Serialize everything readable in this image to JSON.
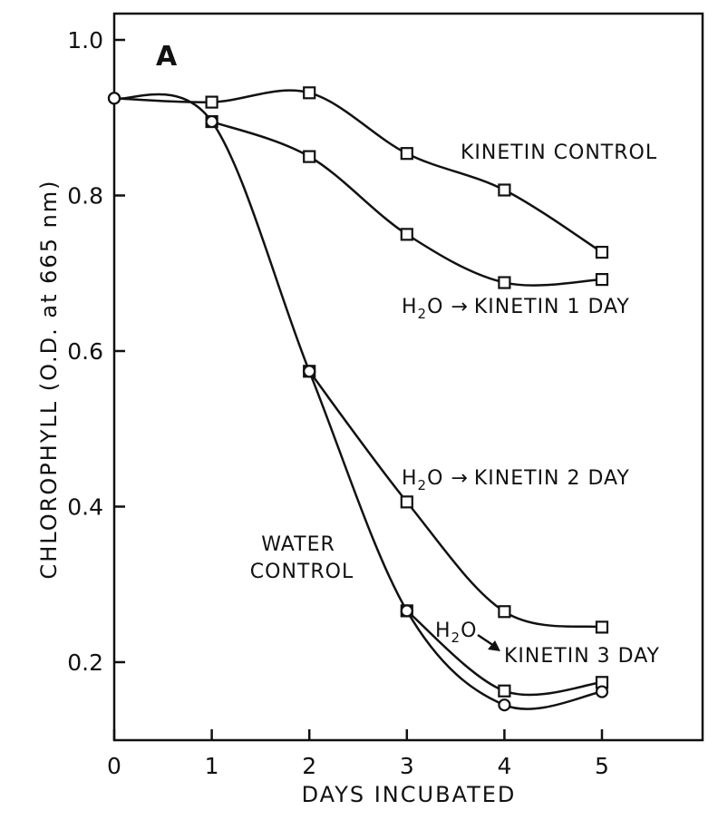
{
  "chart_data": {
    "type": "line",
    "panel_label": "A",
    "xlabel": "DAYS INCUBATED",
    "ylabel": "CHLOROPHYLL (O.D. at 665 nm)",
    "xlim": [
      0,
      6
    ],
    "ylim": [
      0.1,
      1.02
    ],
    "x_ticks": [
      0,
      1,
      2,
      3,
      4,
      5
    ],
    "x_tick_labels": [
      "0",
      "1",
      "2",
      "3",
      "4",
      "5"
    ],
    "y_ticks": [
      0.2,
      0.4,
      0.6,
      0.8,
      1.0
    ],
    "y_tick_labels": [
      "0.2",
      "0.4",
      "0.6",
      "0.8",
      "1.0"
    ],
    "grid": false,
    "series": [
      {
        "name": "KINETIN CONTROL",
        "marker": "square",
        "x": [
          0,
          1,
          2,
          3,
          4,
          5
        ],
        "y": [
          0.925,
          0.92,
          0.932,
          0.854,
          0.807,
          0.727
        ]
      },
      {
        "name": "H2O → KINETIN 1 DAY",
        "marker": "square",
        "x": [
          1,
          2,
          3,
          4,
          5
        ],
        "y": [
          0.895,
          0.85,
          0.75,
          0.688,
          0.692
        ]
      },
      {
        "name": "H2O → KINETIN 2 DAY",
        "marker": "square",
        "x": [
          2,
          3,
          4,
          5
        ],
        "y": [
          0.574,
          0.406,
          0.265,
          0.245
        ]
      },
      {
        "name": "H2O → KINETIN 3 DAY",
        "marker": "square",
        "x": [
          3,
          4,
          5
        ],
        "y": [
          0.266,
          0.163,
          0.174
        ]
      },
      {
        "name": "WATER CONTROL",
        "marker": "circle",
        "x": [
          0,
          1,
          2,
          3,
          4,
          5
        ],
        "y": [
          0.925,
          0.895,
          0.574,
          0.266,
          0.145,
          0.162
        ]
      }
    ],
    "annotations": [
      {
        "id": "kinetin-control",
        "lines": [
          "KINETIN CONTROL"
        ]
      },
      {
        "id": "kinetin-1day",
        "h2o": "H",
        "sub": "2",
        "o": "O",
        "arrow": "→",
        "text": "KINETIN 1 DAY"
      },
      {
        "id": "kinetin-2day",
        "h2o": "H",
        "sub": "2",
        "o": "O",
        "arrow": "→",
        "text": "KINETIN 2 DAY"
      },
      {
        "id": "water-control",
        "lines": [
          "WATER",
          "CONTROL"
        ]
      },
      {
        "id": "kinetin-3day",
        "h2o": "H",
        "sub": "2",
        "o": "O",
        "arrow": "→",
        "text": "KINETIN 3 DAY"
      }
    ]
  }
}
